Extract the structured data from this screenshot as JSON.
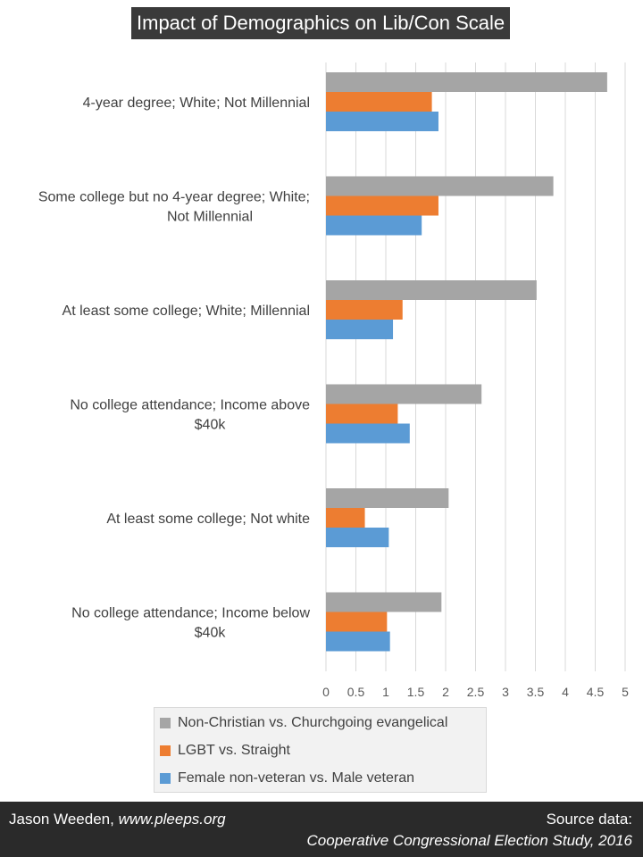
{
  "chart_data": {
    "type": "bar",
    "orientation": "horizontal",
    "title": "Impact of Demographics on Lib/Con Scale",
    "categories": [
      [
        "4-year degree; White; Not Millennial"
      ],
      [
        "Some college but no 4-year degree; White;",
        "Not Millennial"
      ],
      [
        "At least some college; White; Millennial"
      ],
      [
        "No college attendance; Income above",
        "$40k"
      ],
      [
        "At least some college; Not white"
      ],
      [
        "No college attendance; Income below",
        "$40k"
      ]
    ],
    "series": [
      {
        "name": "Non-Christian vs. Churchgoing evangelical",
        "color": "#a5a5a5",
        "values": [
          4.7,
          3.8,
          3.52,
          2.6,
          2.05,
          1.93
        ]
      },
      {
        "name": "LGBT vs. Straight",
        "color": "#ed7d31",
        "values": [
          1.77,
          1.88,
          1.28,
          1.2,
          0.65,
          1.02
        ]
      },
      {
        "name": "Female non-veteran vs. Male veteran",
        "color": "#5b9bd5",
        "values": [
          1.88,
          1.6,
          1.12,
          1.4,
          1.05,
          1.07
        ]
      }
    ],
    "xlim": [
      0,
      5
    ],
    "xticks": [
      "0",
      "0.5",
      "1",
      "1.5",
      "2",
      "2.5",
      "3",
      "3.5",
      "4",
      "4.5",
      "5"
    ],
    "grid": true,
    "legend_position": "bottom"
  },
  "footer": {
    "author": "Jason Weeden,",
    "website": "www.pleeps.org",
    "source_label": "Source data:",
    "source_name": "Cooperative Congressional Election Study, 2016"
  }
}
